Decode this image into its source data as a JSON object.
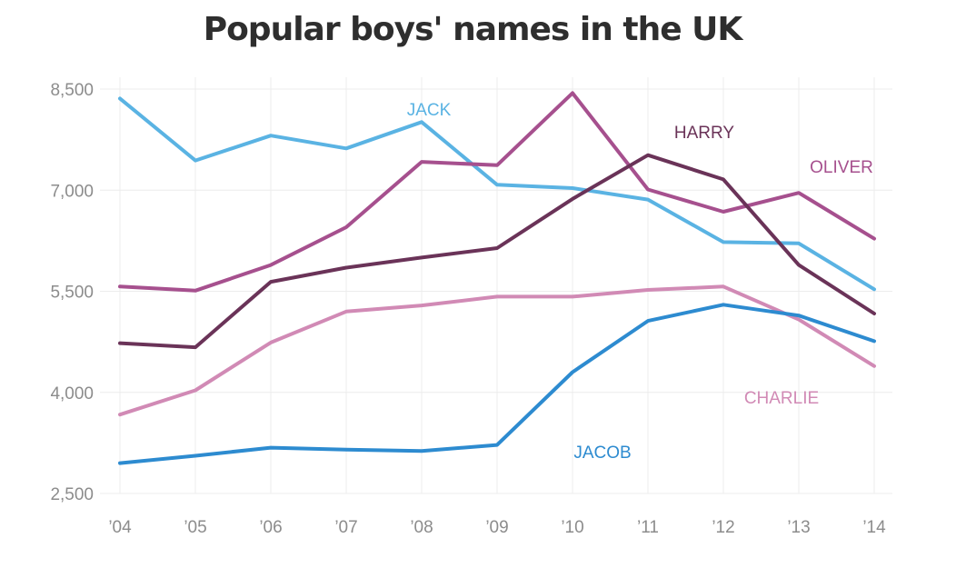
{
  "chart_data": {
    "type": "line",
    "title": "Popular boys' names in the UK",
    "xlabel": "",
    "ylabel": "",
    "categories": [
      "’04",
      "’05",
      "’06",
      "’07",
      "’08",
      "’09",
      "’10",
      "’11",
      "’12",
      "’13",
      "’14"
    ],
    "yticks": [
      2500,
      4000,
      5500,
      7000,
      8500
    ],
    "ytick_labels": [
      "2,500",
      "4,000",
      "5,500",
      "7,000",
      "8,500"
    ],
    "ylim": [
      2500,
      8500
    ],
    "grid": true,
    "series": [
      {
        "name": "JACK",
        "color": "#5ab3e3",
        "values": [
          8360,
          7440,
          7810,
          7620,
          8010,
          7080,
          7030,
          6860,
          6230,
          6210,
          5530
        ]
      },
      {
        "name": "OLIVER",
        "color": "#a6508e",
        "values": [
          5570,
          5510,
          5890,
          6450,
          7420,
          7370,
          8440,
          7010,
          6680,
          6960,
          6280
        ]
      },
      {
        "name": "HARRY",
        "color": "#6a3358",
        "values": [
          4730,
          4670,
          5640,
          5850,
          6000,
          6140,
          6870,
          7520,
          7160,
          5890,
          5170
        ]
      },
      {
        "name": "CHARLIE",
        "color": "#d18ab5",
        "values": [
          3670,
          4030,
          4740,
          5200,
          5290,
          5420,
          5420,
          5520,
          5570,
          5080,
          4390
        ]
      },
      {
        "name": "JACOB",
        "color": "#2d8bd0",
        "values": [
          2950,
          3060,
          3180,
          3150,
          3130,
          3220,
          4300,
          5060,
          5300,
          5140,
          4760
        ]
      }
    ]
  }
}
